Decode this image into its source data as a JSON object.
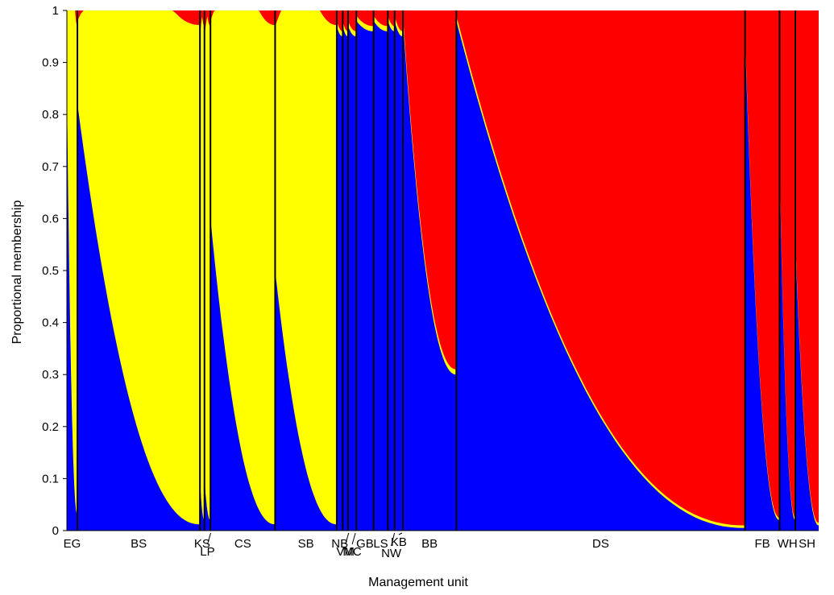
{
  "chart_data": {
    "type": "area",
    "title": "",
    "xlabel": "Management unit",
    "ylabel": "Proportional membership",
    "ylim": [
      0,
      1
    ],
    "yticks": [
      "0",
      "0.1",
      "0.2",
      "0.3",
      "0.4",
      "0.5",
      "0.6",
      "0.7",
      "0.8",
      "0.9",
      "1"
    ],
    "series": [
      {
        "name": "",
        "color": "#0000ff"
      },
      {
        "name": "",
        "color": "#ffff00"
      },
      {
        "name": "",
        "color": "#ff0000"
      }
    ],
    "units": [
      {
        "label": "EG",
        "start": 0.0,
        "end": 0.014,
        "blue": [
          0.85,
          0.03
        ],
        "yellow": [
          0.13,
          0.94
        ]
      },
      {
        "label": "BS",
        "start": 0.014,
        "end": 0.177,
        "blue": [
          0.82,
          0.012
        ],
        "yellow": [
          0.16,
          0.96
        ]
      },
      {
        "label": "KS",
        "start": 0.177,
        "end": 0.183,
        "blue": [
          0.1,
          0.02
        ],
        "yellow": [
          0.85,
          0.95
        ]
      },
      {
        "label": "LP",
        "start": 0.183,
        "end": 0.191,
        "blue": [
          0.1,
          0.02
        ],
        "yellow": [
          0.85,
          0.95
        ]
      },
      {
        "label": "CS",
        "start": 0.191,
        "end": 0.277,
        "blue": [
          0.6,
          0.012
        ],
        "yellow": [
          0.38,
          0.96
        ]
      },
      {
        "label": "SB",
        "start": 0.277,
        "end": 0.359,
        "blue": [
          0.5,
          0.012
        ],
        "yellow": [
          0.47,
          0.96
        ]
      },
      {
        "label": "NB",
        "start": 0.359,
        "end": 0.367,
        "blue": [
          0.97,
          0.95
        ],
        "yellow": [
          0.01,
          0.01
        ]
      },
      {
        "label": "VM",
        "start": 0.367,
        "end": 0.374,
        "blue": [
          0.97,
          0.95
        ],
        "yellow": [
          0.01,
          0.01
        ]
      },
      {
        "label": "MC",
        "start": 0.374,
        "end": 0.385,
        "blue": [
          0.97,
          0.95
        ],
        "yellow": [
          0.01,
          0.01
        ]
      },
      {
        "label": "GB",
        "start": 0.385,
        "end": 0.408,
        "blue": [
          0.98,
          0.96
        ],
        "yellow": [
          0.01,
          0.01
        ]
      },
      {
        "label": "LS",
        "start": 0.408,
        "end": 0.427,
        "blue": [
          0.98,
          0.96
        ],
        "yellow": [
          0.01,
          0.01
        ]
      },
      {
        "label": "NW",
        "start": 0.427,
        "end": 0.436,
        "blue": [
          0.98,
          0.96
        ],
        "yellow": [
          0.01,
          0.01
        ]
      },
      {
        "label": "KB",
        "start": 0.436,
        "end": 0.447,
        "blue": [
          0.98,
          0.95
        ],
        "yellow": [
          0.01,
          0.01
        ]
      },
      {
        "label": "BB",
        "start": 0.447,
        "end": 0.518,
        "blue": [
          0.98,
          0.3
        ],
        "yellow": [
          0.01,
          0.01
        ]
      },
      {
        "label": "DS",
        "start": 0.518,
        "end": 0.902,
        "blue": [
          0.98,
          0.005
        ],
        "yellow": [
          0.01,
          0.005
        ]
      },
      {
        "label": "FB",
        "start": 0.902,
        "end": 0.948,
        "blue": [
          0.95,
          0.02
        ],
        "yellow": [
          0.01,
          0.005
        ]
      },
      {
        "label": "WH",
        "start": 0.948,
        "end": 0.969,
        "blue": [
          0.7,
          0.02
        ],
        "yellow": [
          0.01,
          0.005
        ]
      },
      {
        "label": "SH",
        "start": 0.969,
        "end": 1.0,
        "blue": [
          0.55,
          0.01
        ],
        "yellow": [
          0.01,
          0.005
        ]
      }
    ],
    "grid": false,
    "legend": "none"
  }
}
